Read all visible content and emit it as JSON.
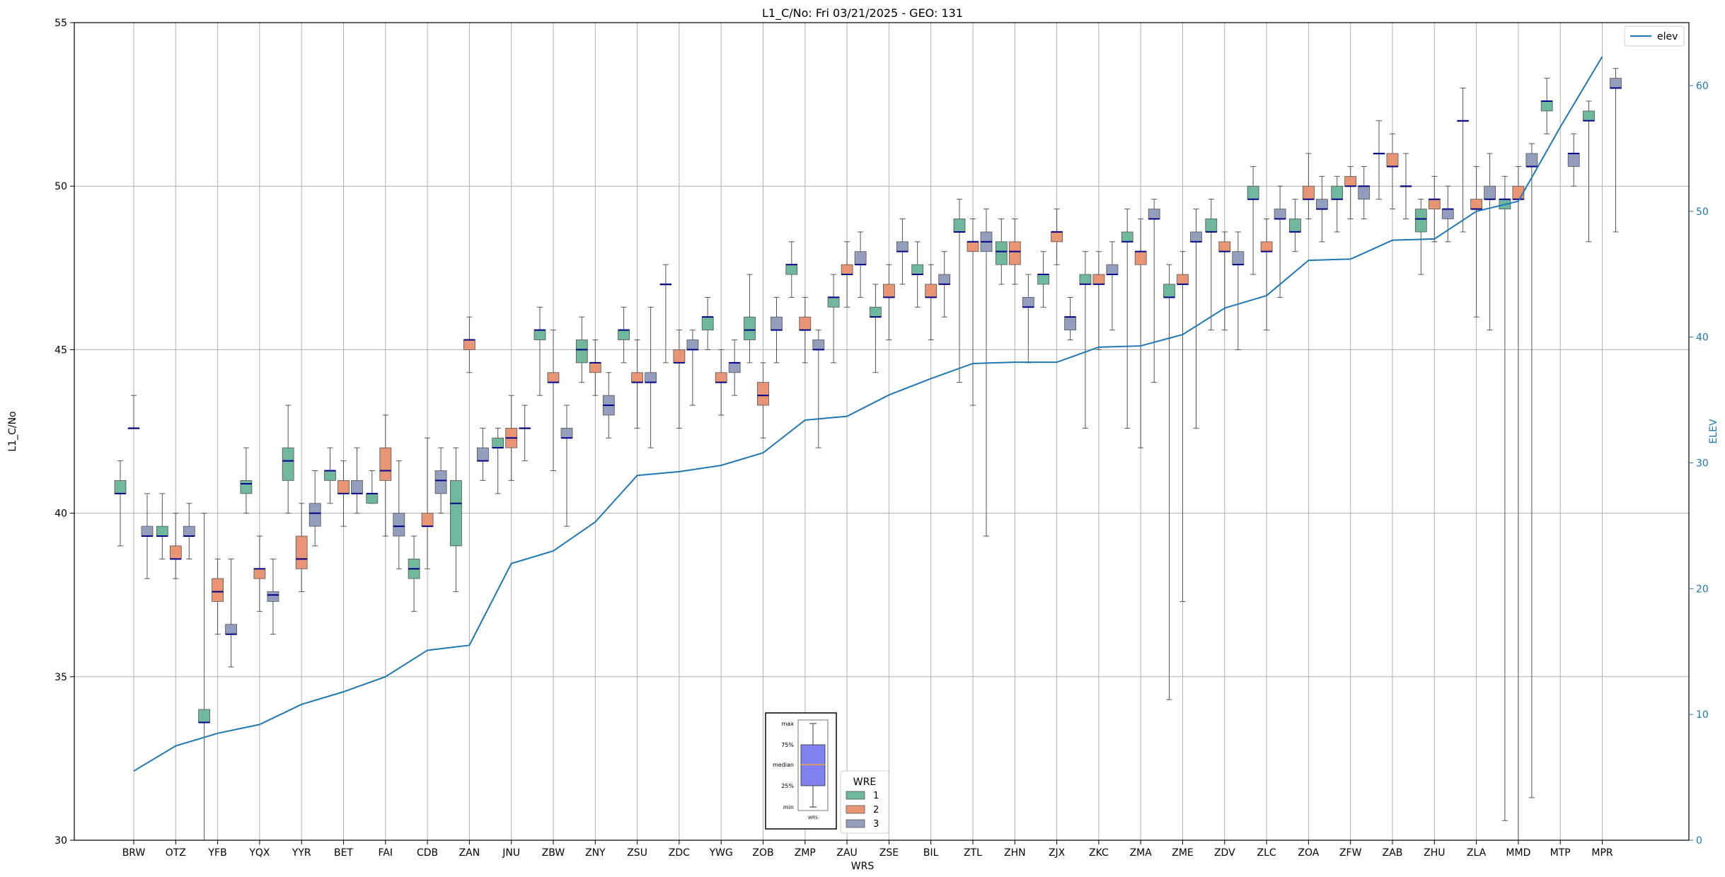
{
  "chart_data": {
    "type": "box",
    "title": "L1_C/No: Fri 03/21/2025 - GEO: 131",
    "xlabel": "WRS",
    "ylabel": "L1_C/No",
    "ylabel_right": "ELEV",
    "ylim": [
      30,
      55
    ],
    "ylim_right": [
      0,
      65
    ],
    "yticks": [
      30,
      35,
      40,
      45,
      50,
      55
    ],
    "yticks_right": [
      0,
      10,
      20,
      30,
      40,
      50,
      60
    ],
    "grid": true,
    "categories": [
      "BRW",
      "OTZ",
      "YFB",
      "YQX",
      "YYR",
      "BET",
      "FAI",
      "CDB",
      "ZAN",
      "JNU",
      "ZBW",
      "ZNY",
      "ZSU",
      "ZDC",
      "YWG",
      "ZOB",
      "ZMP",
      "ZAU",
      "ZSE",
      "BIL",
      "ZTL",
      "ZHN",
      "ZJX",
      "ZKC",
      "ZMA",
      "ZME",
      "ZDV",
      "ZLC",
      "ZOA",
      "ZFW",
      "ZAB",
      "ZHU",
      "ZLA",
      "MMD",
      "MTP",
      "MPR"
    ],
    "elev": [
      5.5,
      7.5,
      8.5,
      9.2,
      10.8,
      11.8,
      13.0,
      15.1,
      15.5,
      22.0,
      23.0,
      25.3,
      29.0,
      29.3,
      29.8,
      30.8,
      33.4,
      33.7,
      35.4,
      36.7,
      37.9,
      38.0,
      38.0,
      39.2,
      39.3,
      40.2,
      42.3,
      43.3,
      46.1,
      46.2,
      47.7,
      47.8,
      50.0,
      50.8,
      56.7,
      62.3
    ],
    "series_names": [
      "1",
      "2",
      "3"
    ],
    "series_colors": [
      "#6fb89d",
      "#e89575",
      "#939ebd"
    ],
    "elev_color": "#1f77b4",
    "boxes": [
      {
        "cat": "BRW",
        "series": 1,
        "min": 39.0,
        "q1": 40.6,
        "med": 40.6,
        "q3": 41.0,
        "max": 41.6
      },
      {
        "cat": "BRW",
        "series": 2,
        "min": 42.6,
        "q1": 42.6,
        "med": 42.6,
        "q3": 42.6,
        "max": 43.6
      },
      {
        "cat": "BRW",
        "series": 3,
        "min": 38.0,
        "q1": 39.3,
        "med": 39.3,
        "q3": 39.6,
        "max": 40.6
      },
      {
        "cat": "OTZ",
        "series": 1,
        "min": 38.6,
        "q1": 39.3,
        "med": 39.3,
        "q3": 39.6,
        "max": 40.6
      },
      {
        "cat": "OTZ",
        "series": 2,
        "min": 38.0,
        "q1": 38.6,
        "med": 38.6,
        "q3": 39.0,
        "max": 40.0
      },
      {
        "cat": "OTZ",
        "series": 3,
        "min": 38.6,
        "q1": 39.3,
        "med": 39.3,
        "q3": 39.6,
        "max": 40.3
      },
      {
        "cat": "YFB",
        "series": 1,
        "min": 30.0,
        "q1": 33.6,
        "med": 33.6,
        "q3": 34.0,
        "max": 40.0
      },
      {
        "cat": "YFB",
        "series": 2,
        "min": 36.3,
        "q1": 37.3,
        "med": 37.6,
        "q3": 38.0,
        "max": 38.6
      },
      {
        "cat": "YFB",
        "series": 3,
        "min": 35.3,
        "q1": 36.3,
        "med": 36.3,
        "q3": 36.6,
        "max": 38.6
      },
      {
        "cat": "YQX",
        "series": 1,
        "min": 40.0,
        "q1": 40.6,
        "med": 40.9,
        "q3": 41.0,
        "max": 42.0
      },
      {
        "cat": "YQX",
        "series": 2,
        "min": 37.0,
        "q1": 38.0,
        "med": 38.3,
        "q3": 38.3,
        "max": 39.3
      },
      {
        "cat": "YQX",
        "series": 3,
        "min": 36.3,
        "q1": 37.3,
        "med": 37.5,
        "q3": 37.6,
        "max": 38.6
      },
      {
        "cat": "YYR",
        "series": 1,
        "min": 40.0,
        "q1": 41.0,
        "med": 41.6,
        "q3": 42.0,
        "max": 43.3
      },
      {
        "cat": "YYR",
        "series": 2,
        "min": 37.6,
        "q1": 38.3,
        "med": 38.6,
        "q3": 39.3,
        "max": 40.3
      },
      {
        "cat": "YYR",
        "series": 3,
        "min": 39.0,
        "q1": 39.6,
        "med": 40.0,
        "q3": 40.3,
        "max": 41.3
      },
      {
        "cat": "BET",
        "series": 1,
        "min": 40.3,
        "q1": 41.0,
        "med": 41.3,
        "q3": 41.3,
        "max": 42.0
      },
      {
        "cat": "BET",
        "series": 2,
        "min": 39.6,
        "q1": 40.6,
        "med": 40.6,
        "q3": 41.0,
        "max": 41.6
      },
      {
        "cat": "BET",
        "series": 3,
        "min": 40.0,
        "q1": 40.6,
        "med": 40.6,
        "q3": 41.0,
        "max": 42.0
      },
      {
        "cat": "FAI",
        "series": 1,
        "min": 40.3,
        "q1": 40.3,
        "med": 40.6,
        "q3": 40.6,
        "max": 41.3
      },
      {
        "cat": "FAI",
        "series": 2,
        "min": 39.3,
        "q1": 41.0,
        "med": 41.3,
        "q3": 42.0,
        "max": 43.0
      },
      {
        "cat": "FAI",
        "series": 3,
        "min": 38.3,
        "q1": 39.3,
        "med": 39.6,
        "q3": 40.0,
        "max": 41.6
      },
      {
        "cat": "CDB",
        "series": 1,
        "min": 37.0,
        "q1": 38.0,
        "med": 38.3,
        "q3": 38.6,
        "max": 39.3
      },
      {
        "cat": "CDB",
        "series": 2,
        "min": 38.3,
        "q1": 39.6,
        "med": 39.6,
        "q3": 40.0,
        "max": 42.3
      },
      {
        "cat": "CDB",
        "series": 3,
        "min": 40.0,
        "q1": 40.6,
        "med": 41.0,
        "q3": 41.3,
        "max": 42.0
      },
      {
        "cat": "ZAN",
        "series": 1,
        "min": 37.6,
        "q1": 39.0,
        "med": 40.3,
        "q3": 41.0,
        "max": 42.0
      },
      {
        "cat": "ZAN",
        "series": 2,
        "min": 44.3,
        "q1": 45.0,
        "med": 45.3,
        "q3": 45.3,
        "max": 46.0
      },
      {
        "cat": "ZAN",
        "series": 3,
        "min": 41.0,
        "q1": 41.6,
        "med": 41.6,
        "q3": 42.0,
        "max": 42.6
      },
      {
        "cat": "JNU",
        "series": 1,
        "min": 40.6,
        "q1": 42.0,
        "med": 42.0,
        "q3": 42.3,
        "max": 42.6
      },
      {
        "cat": "JNU",
        "series": 2,
        "min": 41.0,
        "q1": 42.0,
        "med": 42.3,
        "q3": 42.6,
        "max": 43.6
      },
      {
        "cat": "JNU",
        "series": 3,
        "min": 41.6,
        "q1": 42.6,
        "med": 42.6,
        "q3": 42.6,
        "max": 43.3
      },
      {
        "cat": "ZBW",
        "series": 1,
        "min": 43.6,
        "q1": 45.3,
        "med": 45.6,
        "q3": 45.6,
        "max": 46.3
      },
      {
        "cat": "ZBW",
        "series": 2,
        "min": 41.3,
        "q1": 44.0,
        "med": 44.0,
        "q3": 44.3,
        "max": 45.6
      },
      {
        "cat": "ZBW",
        "series": 3,
        "min": 39.6,
        "q1": 42.3,
        "med": 42.3,
        "q3": 42.6,
        "max": 43.3
      },
      {
        "cat": "ZNY",
        "series": 1,
        "min": 44.0,
        "q1": 44.6,
        "med": 45.0,
        "q3": 45.3,
        "max": 46.0
      },
      {
        "cat": "ZNY",
        "series": 2,
        "min": 43.6,
        "q1": 44.3,
        "med": 44.6,
        "q3": 44.6,
        "max": 45.3
      },
      {
        "cat": "ZNY",
        "series": 3,
        "min": 42.3,
        "q1": 43.0,
        "med": 43.3,
        "q3": 43.6,
        "max": 44.3
      },
      {
        "cat": "ZSU",
        "series": 1,
        "min": 44.6,
        "q1": 45.3,
        "med": 45.6,
        "q3": 45.6,
        "max": 46.3
      },
      {
        "cat": "ZSU",
        "series": 2,
        "min": 42.6,
        "q1": 44.0,
        "med": 44.0,
        "q3": 44.3,
        "max": 45.3
      },
      {
        "cat": "ZSU",
        "series": 3,
        "min": 42.0,
        "q1": 44.0,
        "med": 44.0,
        "q3": 44.3,
        "max": 46.3
      },
      {
        "cat": "ZDC",
        "series": 1,
        "min": 44.6,
        "q1": 47.0,
        "med": 47.0,
        "q3": 47.0,
        "max": 47.6
      },
      {
        "cat": "ZDC",
        "series": 2,
        "min": 42.6,
        "q1": 44.6,
        "med": 44.6,
        "q3": 45.0,
        "max": 45.6
      },
      {
        "cat": "ZDC",
        "series": 3,
        "min": 43.3,
        "q1": 45.0,
        "med": 45.0,
        "q3": 45.3,
        "max": 45.6
      },
      {
        "cat": "YWG",
        "series": 1,
        "min": 45.0,
        "q1": 45.6,
        "med": 46.0,
        "q3": 46.0,
        "max": 46.6
      },
      {
        "cat": "YWG",
        "series": 2,
        "min": 43.0,
        "q1": 44.0,
        "med": 44.0,
        "q3": 44.3,
        "max": 45.0
      },
      {
        "cat": "YWG",
        "series": 3,
        "min": 43.6,
        "q1": 44.3,
        "med": 44.6,
        "q3": 44.6,
        "max": 45.3
      },
      {
        "cat": "ZOB",
        "series": 1,
        "min": 44.6,
        "q1": 45.3,
        "med": 45.6,
        "q3": 46.0,
        "max": 47.3
      },
      {
        "cat": "ZOB",
        "series": 2,
        "min": 42.3,
        "q1": 43.3,
        "med": 43.6,
        "q3": 44.0,
        "max": 44.6
      },
      {
        "cat": "ZOB",
        "series": 3,
        "min": 44.6,
        "q1": 45.6,
        "med": 45.6,
        "q3": 46.0,
        "max": 46.6
      },
      {
        "cat": "ZMP",
        "series": 1,
        "min": 46.6,
        "q1": 47.3,
        "med": 47.6,
        "q3": 47.6,
        "max": 48.3
      },
      {
        "cat": "ZMP",
        "series": 2,
        "min": 44.6,
        "q1": 45.6,
        "med": 45.6,
        "q3": 46.0,
        "max": 46.6
      },
      {
        "cat": "ZMP",
        "series": 3,
        "min": 42.0,
        "q1": 45.0,
        "med": 45.0,
        "q3": 45.3,
        "max": 45.6
      },
      {
        "cat": "ZAU",
        "series": 1,
        "min": 44.6,
        "q1": 46.3,
        "med": 46.6,
        "q3": 46.6,
        "max": 47.3
      },
      {
        "cat": "ZAU",
        "series": 2,
        "min": 46.3,
        "q1": 47.3,
        "med": 47.3,
        "q3": 47.6,
        "max": 48.3
      },
      {
        "cat": "ZAU",
        "series": 3,
        "min": 46.6,
        "q1": 47.6,
        "med": 47.6,
        "q3": 48.0,
        "max": 48.6
      },
      {
        "cat": "ZSE",
        "series": 1,
        "min": 44.3,
        "q1": 46.0,
        "med": 46.0,
        "q3": 46.3,
        "max": 47.0
      },
      {
        "cat": "ZSE",
        "series": 2,
        "min": 45.3,
        "q1": 46.6,
        "med": 46.6,
        "q3": 47.0,
        "max": 47.6
      },
      {
        "cat": "ZSE",
        "series": 3,
        "min": 47.0,
        "q1": 48.0,
        "med": 48.0,
        "q3": 48.3,
        "max": 49.0
      },
      {
        "cat": "BIL",
        "series": 1,
        "min": 46.3,
        "q1": 47.3,
        "med": 47.3,
        "q3": 47.6,
        "max": 48.3
      },
      {
        "cat": "BIL",
        "series": 2,
        "min": 45.3,
        "q1": 46.6,
        "med": 46.6,
        "q3": 47.0,
        "max": 47.6
      },
      {
        "cat": "BIL",
        "series": 3,
        "min": 46.0,
        "q1": 47.0,
        "med": 47.0,
        "q3": 47.3,
        "max": 48.0
      },
      {
        "cat": "ZTL",
        "series": 1,
        "min": 44.0,
        "q1": 48.6,
        "med": 48.6,
        "q3": 49.0,
        "max": 49.6
      },
      {
        "cat": "ZTL",
        "series": 2,
        "min": 43.3,
        "q1": 48.0,
        "med": 48.3,
        "q3": 48.3,
        "max": 49.0
      },
      {
        "cat": "ZTL",
        "series": 3,
        "min": 39.3,
        "q1": 48.0,
        "med": 48.3,
        "q3": 48.6,
        "max": 49.3
      },
      {
        "cat": "ZHN",
        "series": 1,
        "min": 47.0,
        "q1": 47.6,
        "med": 48.0,
        "q3": 48.3,
        "max": 49.0
      },
      {
        "cat": "ZHN",
        "series": 2,
        "min": 47.0,
        "q1": 47.6,
        "med": 48.0,
        "q3": 48.3,
        "max": 49.0
      },
      {
        "cat": "ZHN",
        "series": 3,
        "min": 44.6,
        "q1": 46.3,
        "med": 46.3,
        "q3": 46.6,
        "max": 47.3
      },
      {
        "cat": "ZJX",
        "series": 1,
        "min": 46.3,
        "q1": 47.0,
        "med": 47.3,
        "q3": 47.3,
        "max": 48.0
      },
      {
        "cat": "ZJX",
        "series": 2,
        "min": 47.6,
        "q1": 48.3,
        "med": 48.6,
        "q3": 48.6,
        "max": 49.3
      },
      {
        "cat": "ZJX",
        "series": 3,
        "min": 45.3,
        "q1": 45.6,
        "med": 46.0,
        "q3": 46.0,
        "max": 46.6
      },
      {
        "cat": "ZKC",
        "series": 1,
        "min": 42.6,
        "q1": 47.0,
        "med": 47.0,
        "q3": 47.3,
        "max": 48.0
      },
      {
        "cat": "ZKC",
        "series": 2,
        "min": 45.0,
        "q1": 47.0,
        "med": 47.0,
        "q3": 47.3,
        "max": 48.0
      },
      {
        "cat": "ZKC",
        "series": 3,
        "min": 45.6,
        "q1": 47.3,
        "med": 47.3,
        "q3": 47.6,
        "max": 48.3
      },
      {
        "cat": "ZMA",
        "series": 1,
        "min": 42.6,
        "q1": 48.3,
        "med": 48.3,
        "q3": 48.6,
        "max": 49.3
      },
      {
        "cat": "ZMA",
        "series": 2,
        "min": 42.0,
        "q1": 47.6,
        "med": 48.0,
        "q3": 48.0,
        "max": 49.0
      },
      {
        "cat": "ZMA",
        "series": 3,
        "min": 44.0,
        "q1": 49.0,
        "med": 49.0,
        "q3": 49.3,
        "max": 49.6
      },
      {
        "cat": "ZME",
        "series": 1,
        "min": 34.3,
        "q1": 46.6,
        "med": 46.6,
        "q3": 47.0,
        "max": 47.6
      },
      {
        "cat": "ZME",
        "series": 2,
        "min": 37.3,
        "q1": 47.0,
        "med": 47.0,
        "q3": 47.3,
        "max": 48.0
      },
      {
        "cat": "ZME",
        "series": 3,
        "min": 42.6,
        "q1": 48.3,
        "med": 48.3,
        "q3": 48.6,
        "max": 49.3
      },
      {
        "cat": "ZDV",
        "series": 1,
        "min": 45.6,
        "q1": 48.6,
        "med": 48.6,
        "q3": 49.0,
        "max": 49.6
      },
      {
        "cat": "ZDV",
        "series": 2,
        "min": 45.6,
        "q1": 48.0,
        "med": 48.0,
        "q3": 48.3,
        "max": 48.6
      },
      {
        "cat": "ZDV",
        "series": 3,
        "min": 45.0,
        "q1": 47.6,
        "med": 47.6,
        "q3": 48.0,
        "max": 48.6
      },
      {
        "cat": "ZLC",
        "series": 1,
        "min": 47.3,
        "q1": 49.6,
        "med": 49.6,
        "q3": 50.0,
        "max": 50.6
      },
      {
        "cat": "ZLC",
        "series": 2,
        "min": 45.6,
        "q1": 48.0,
        "med": 48.0,
        "q3": 48.3,
        "max": 49.0
      },
      {
        "cat": "ZLC",
        "series": 3,
        "min": 46.6,
        "q1": 49.0,
        "med": 49.0,
        "q3": 49.3,
        "max": 50.0
      },
      {
        "cat": "ZOA",
        "series": 1,
        "min": 48.0,
        "q1": 48.6,
        "med": 48.6,
        "q3": 49.0,
        "max": 49.6
      },
      {
        "cat": "ZOA",
        "series": 2,
        "min": 49.0,
        "q1": 49.6,
        "med": 49.6,
        "q3": 50.0,
        "max": 51.0
      },
      {
        "cat": "ZOA",
        "series": 3,
        "min": 48.3,
        "q1": 49.3,
        "med": 49.3,
        "q3": 49.6,
        "max": 50.3
      },
      {
        "cat": "ZFW",
        "series": 1,
        "min": 48.6,
        "q1": 49.6,
        "med": 49.6,
        "q3": 50.0,
        "max": 50.3
      },
      {
        "cat": "ZFW",
        "series": 2,
        "min": 49.0,
        "q1": 50.0,
        "med": 50.0,
        "q3": 50.3,
        "max": 50.6
      },
      {
        "cat": "ZFW",
        "series": 3,
        "min": 49.0,
        "q1": 49.6,
        "med": 50.0,
        "q3": 50.0,
        "max": 50.6
      },
      {
        "cat": "ZAB",
        "series": 1,
        "min": 49.6,
        "q1": 51.0,
        "med": 51.0,
        "q3": 51.0,
        "max": 52.0
      },
      {
        "cat": "ZAB",
        "series": 2,
        "min": 49.3,
        "q1": 50.6,
        "med": 50.6,
        "q3": 51.0,
        "max": 51.6
      },
      {
        "cat": "ZAB",
        "series": 3,
        "min": 49.0,
        "q1": 50.0,
        "med": 50.0,
        "q3": 50.0,
        "max": 51.0
      },
      {
        "cat": "ZHU",
        "series": 1,
        "min": 47.3,
        "q1": 48.6,
        "med": 49.0,
        "q3": 49.3,
        "max": 49.6
      },
      {
        "cat": "ZHU",
        "series": 2,
        "min": 48.3,
        "q1": 49.3,
        "med": 49.6,
        "q3": 49.6,
        "max": 50.3
      },
      {
        "cat": "ZHU",
        "series": 3,
        "min": 48.3,
        "q1": 49.0,
        "med": 49.3,
        "q3": 49.3,
        "max": 50.0
      },
      {
        "cat": "ZLA",
        "series": 1,
        "min": 48.6,
        "q1": 52.0,
        "med": 52.0,
        "q3": 52.0,
        "max": 53.0
      },
      {
        "cat": "ZLA",
        "series": 2,
        "min": 46.0,
        "q1": 49.3,
        "med": 49.3,
        "q3": 49.6,
        "max": 50.6
      },
      {
        "cat": "ZLA",
        "series": 3,
        "min": 45.6,
        "q1": 49.6,
        "med": 49.6,
        "q3": 50.0,
        "max": 51.0
      },
      {
        "cat": "MMD",
        "series": 1,
        "min": 30.6,
        "q1": 49.3,
        "med": 49.6,
        "q3": 49.6,
        "max": 50.3
      },
      {
        "cat": "MMD",
        "series": 2,
        "min": 30.0,
        "q1": 49.6,
        "med": 49.6,
        "q3": 50.0,
        "max": 50.6
      },
      {
        "cat": "MMD",
        "series": 3,
        "min": 31.3,
        "q1": 50.6,
        "med": 50.6,
        "q3": 51.0,
        "max": 51.3
      },
      {
        "cat": "MTP",
        "series": 1,
        "min": 51.6,
        "q1": 52.3,
        "med": 52.6,
        "q3": 52.6,
        "max": 53.3
      },
      {
        "cat": "MTP",
        "series": 3,
        "min": 50.0,
        "q1": 50.6,
        "med": 51.0,
        "q3": 51.0,
        "max": 51.6
      },
      {
        "cat": "MPR",
        "series": 1,
        "min": 48.3,
        "q1": 52.0,
        "med": 52.0,
        "q3": 52.3,
        "max": 52.6
      },
      {
        "cat": "MPR",
        "series": 3,
        "min": 48.6,
        "q1": 53.0,
        "med": 53.0,
        "q3": 53.3,
        "max": 53.6
      }
    ],
    "legend_elev": {
      "label": "elev",
      "placement": "top-right"
    },
    "legend_wre": {
      "title": "WRE",
      "entries": [
        "1",
        "2",
        "3"
      ],
      "placement": "bottom-center"
    },
    "key_inset": {
      "labels": [
        "max",
        "75%",
        "median",
        "25%",
        "min"
      ],
      "xlabel": "WRS"
    }
  }
}
